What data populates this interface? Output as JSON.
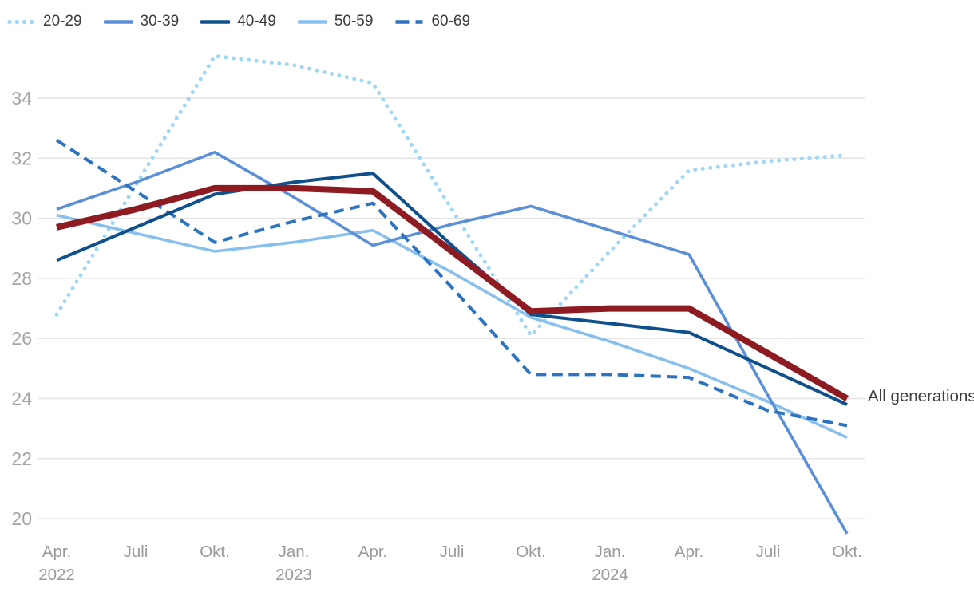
{
  "legend": {
    "items": [
      {
        "label": "20-29"
      },
      {
        "label": "30-39"
      },
      {
        "label": "40-49"
      },
      {
        "label": "50-59"
      },
      {
        "label": "60-69"
      }
    ]
  },
  "annotation": {
    "text": "All generations"
  },
  "colors": {
    "grid": "#e3e3e3",
    "y_tick_text": "#a4a4a4",
    "x_tick_text": "#9a9a9a",
    "legend_text": "#3c3c3c",
    "annotation_text": "#3d3d3d"
  },
  "chart_data": {
    "type": "line",
    "title": "",
    "xlabel": "",
    "ylabel": "",
    "grid": true,
    "legend_position": "top-left",
    "x_labels": [
      "Apr.",
      "Juli",
      "Okt.",
      "Jan.",
      "Apr.",
      "Juli",
      "Okt.",
      "Jan.",
      "Apr.",
      "Juli",
      "Okt."
    ],
    "year_labels": [
      {
        "index": 0,
        "text": "2022"
      },
      {
        "index": 3,
        "text": "2023"
      },
      {
        "index": 7,
        "text": "2024"
      }
    ],
    "y_ticks": [
      20,
      22,
      24,
      26,
      28,
      30,
      32,
      34
    ],
    "ylim": [
      19.3,
      35.7
    ],
    "series": [
      {
        "name": "20-29",
        "color": "#9fd7f5",
        "style": "dotted",
        "width": 5,
        "values": [
          26.8,
          31.1,
          35.4,
          35.1,
          34.5,
          30.3,
          26.1,
          28.9,
          31.6,
          31.9,
          32.1
        ]
      },
      {
        "name": "30-39",
        "color": "#5b90d9",
        "style": "solid",
        "width": 3.6,
        "values": [
          30.3,
          31.2,
          32.2,
          30.7,
          29.1,
          29.8,
          30.4,
          29.6,
          28.8,
          24.1,
          19.5
        ]
      },
      {
        "name": "40-49",
        "color": "#0f508c",
        "style": "solid",
        "width": 4,
        "values": [
          28.6,
          29.7,
          30.8,
          31.2,
          31.5,
          29.1,
          26.8,
          26.5,
          26.2,
          25.0,
          23.8
        ]
      },
      {
        "name": "50-59",
        "color": "#87c0ef",
        "style": "solid",
        "width": 3.6,
        "values": [
          30.1,
          29.5,
          28.9,
          29.2,
          29.6,
          28.2,
          26.7,
          25.9,
          25.0,
          23.9,
          22.7
        ]
      },
      {
        "name": "60-69",
        "color": "#2b73c1",
        "style": "dashed",
        "width": 4,
        "values": [
          32.6,
          30.9,
          29.2,
          29.9,
          30.5,
          27.7,
          24.8,
          24.8,
          24.7,
          23.6,
          23.1
        ]
      },
      {
        "name": "All generations",
        "color": "#8e1b22",
        "style": "solid",
        "width": 8,
        "values": [
          29.7,
          30.3,
          31.0,
          31.0,
          30.9,
          28.9,
          26.9,
          27.0,
          27.0,
          25.5,
          24.0
        ]
      }
    ]
  }
}
